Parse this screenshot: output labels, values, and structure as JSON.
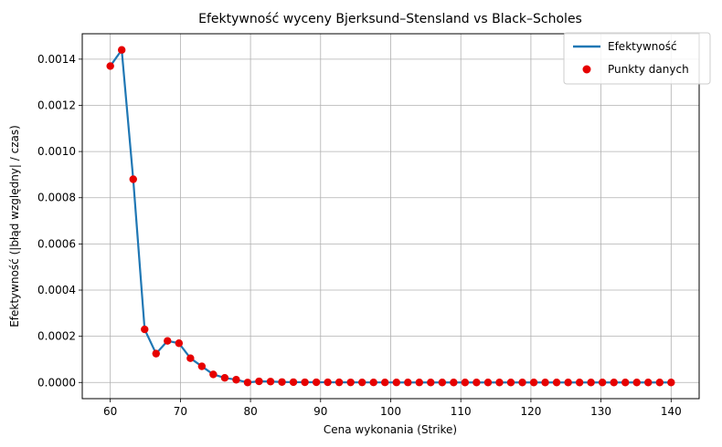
{
  "chart_data": {
    "type": "line",
    "title": "Efektywność wyceny Bjerksund–Stensland vs Black–Scholes",
    "xlabel": "Cena wykonania (Strike)",
    "ylabel": "Efektywność (|błąd względny| / czas)",
    "xlim": [
      56,
      144
    ],
    "ylim": [
      -7e-05,
      0.00151
    ],
    "xticks": [
      60,
      70,
      80,
      90,
      100,
      110,
      120,
      130,
      140
    ],
    "xtick_labels": [
      "60",
      "70",
      "80",
      "90",
      "100",
      "110",
      "120",
      "130",
      "140"
    ],
    "yticks": [
      0,
      0.0002,
      0.0004,
      0.0006,
      0.0008,
      0.001,
      0.0012,
      0.0014
    ],
    "ytick_labels": [
      "0.0000",
      "0.0002",
      "0.0004",
      "0.0006",
      "0.0008",
      "0.0010",
      "0.0012",
      "0.0014"
    ],
    "grid": true,
    "legend_position": "top-right",
    "x": [
      60.0,
      61.63,
      63.27,
      64.9,
      66.53,
      68.16,
      69.8,
      71.43,
      73.06,
      74.69,
      76.33,
      77.96,
      79.59,
      81.22,
      82.86,
      84.49,
      86.12,
      87.76,
      89.39,
      91.02,
      92.65,
      94.29,
      95.92,
      97.55,
      99.18,
      100.82,
      102.45,
      104.08,
      105.71,
      107.35,
      108.98,
      110.61,
      112.24,
      113.88,
      115.51,
      117.14,
      118.78,
      120.41,
      122.04,
      123.67,
      125.31,
      126.94,
      128.57,
      130.2,
      131.84,
      133.47,
      135.1,
      136.73,
      138.37,
      140.0
    ],
    "series": [
      {
        "name": "Efektywność",
        "kind": "line",
        "color": "#1f77b4",
        "values": [
          0.00137,
          0.00144,
          0.00088,
          0.00023,
          0.000125,
          0.00018,
          0.00017,
          0.000105,
          7e-05,
          3.5e-05,
          2e-05,
          1.2e-05,
          0.0,
          5e-06,
          4e-06,
          2e-06,
          1.5e-06,
          1e-06,
          1e-06,
          8e-07,
          6e-07,
          5e-07,
          4e-07,
          3e-07,
          3e-07,
          2e-07,
          2e-07,
          2e-07,
          1e-07,
          1e-07,
          1e-07,
          1e-07,
          1e-07,
          1e-07,
          1e-07,
          1e-07,
          1e-07,
          1e-07,
          1e-07,
          1e-07,
          1e-07,
          1e-07,
          1e-07,
          1e-07,
          1e-07,
          1e-07,
          1e-07,
          1e-07,
          1e-07,
          1e-07
        ]
      },
      {
        "name": "Punkty danych",
        "kind": "scatter",
        "color": "#e60000",
        "values": [
          0.00137,
          0.00144,
          0.00088,
          0.00023,
          0.000125,
          0.00018,
          0.00017,
          0.000105,
          7e-05,
          3.5e-05,
          2e-05,
          1.2e-05,
          0.0,
          5e-06,
          4e-06,
          2e-06,
          1.5e-06,
          1e-06,
          1e-06,
          8e-07,
          6e-07,
          5e-07,
          4e-07,
          3e-07,
          3e-07,
          2e-07,
          2e-07,
          2e-07,
          1e-07,
          1e-07,
          1e-07,
          1e-07,
          1e-07,
          1e-07,
          1e-07,
          1e-07,
          1e-07,
          1e-07,
          1e-07,
          1e-07,
          1e-07,
          1e-07,
          1e-07,
          1e-07,
          1e-07,
          1e-07,
          1e-07,
          1e-07,
          1e-07,
          1e-07
        ]
      }
    ]
  }
}
